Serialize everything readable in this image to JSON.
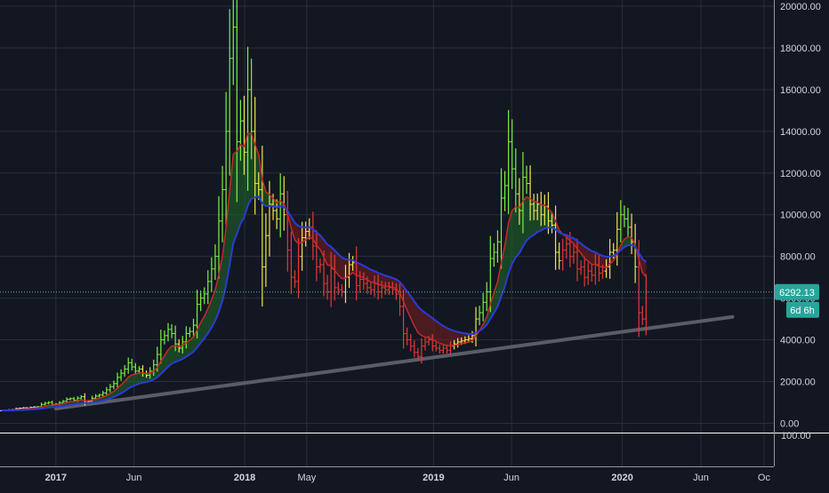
{
  "colors": {
    "background": "#131722",
    "grid": "#2a2e39",
    "axis_text": "#d1d4dc",
    "axis_line": "#9598a1",
    "up_green": "#7cf23c",
    "down_red": "#e53935",
    "neutral_yellow": "#f0e64a",
    "ma_fast_red": "#c62828",
    "ma_slow_blue": "#2a3bd6",
    "trendline": "#5a5d66",
    "price_tag_bg": "#26a69a",
    "price_line": "#4db6ac"
  },
  "chart_data": {
    "type": "ohlc",
    "y_scale": "linear",
    "ylim": [
      -450,
      20300
    ],
    "xlim": [
      "2016-09-15",
      "2020-10-20"
    ],
    "grid": true,
    "y_ticks": [
      {
        "value": 20000,
        "label": "20000.00"
      },
      {
        "value": 18000,
        "label": "18000.00"
      },
      {
        "value": 16000,
        "label": "16000.00"
      },
      {
        "value": 14000,
        "label": "14000.00"
      },
      {
        "value": 12000,
        "label": "12000.00"
      },
      {
        "value": 10000,
        "label": "10000.00"
      },
      {
        "value": 8000,
        "label": "8000.00"
      },
      {
        "value": 6000,
        "label": "6000.00"
      },
      {
        "value": 4000,
        "label": "4000.00"
      },
      {
        "value": 2000,
        "label": "2000.00"
      },
      {
        "value": 0,
        "label": "0.00"
      }
    ],
    "x_ticks": [
      {
        "date": "2017-01-01",
        "label": "2017",
        "bold": true
      },
      {
        "date": "2017-06-01",
        "label": "Jun",
        "bold": false
      },
      {
        "date": "2018-01-01",
        "label": "2018",
        "bold": true
      },
      {
        "date": "2018-05-01",
        "label": "May",
        "bold": false
      },
      {
        "date": "2019-01-01",
        "label": "2019",
        "bold": true
      },
      {
        "date": "2019-06-01",
        "label": "Jun",
        "bold": false
      },
      {
        "date": "2020-01-01",
        "label": "2020",
        "bold": true
      },
      {
        "date": "2020-06-01",
        "label": "Jun",
        "bold": false
      },
      {
        "date": "2020-10-01",
        "label": "Oc",
        "bold": false
      }
    ],
    "weekly_bars": {
      "start": "2016-09-18",
      "interval_days": 7,
      "close": [
        610,
        620,
        640,
        650,
        700,
        720,
        740,
        730,
        760,
        780,
        790,
        900,
        960,
        1000,
        900,
        920,
        990,
        1050,
        1150,
        1180,
        1100,
        1200,
        1270,
        1000,
        1050,
        1200,
        1300,
        1350,
        1450,
        1600,
        1750,
        1900,
        2200,
        2400,
        2600,
        2900,
        2700,
        2500,
        2600,
        2400,
        2300,
        2500,
        2800,
        3300,
        4000,
        4200,
        4500,
        4300,
        3800,
        3600,
        3900,
        4300,
        4400,
        4700,
        5700,
        6000,
        6200,
        6800,
        7400,
        8000,
        9700,
        11200,
        14000,
        17500,
        19000,
        13500,
        14500,
        13000,
        16000,
        14000,
        11500,
        11200,
        7500,
        9000,
        10500,
        10200,
        9800,
        11000,
        10000,
        8300,
        7000,
        6800,
        8000,
        8900,
        9200,
        9400,
        8500,
        7500,
        7600,
        6700,
        6300,
        7400,
        6500,
        6400,
        6300,
        7000,
        7600,
        7700,
        6600,
        6900,
        6700,
        6500,
        6400,
        6700,
        6300,
        6500,
        6400,
        6500,
        6400,
        6200,
        5600,
        4300,
        4000,
        3700,
        3400,
        3200,
        3700,
        3900,
        4000,
        3700,
        3600,
        3500,
        3600,
        3500,
        3700,
        3800,
        3900,
        3950,
        4000,
        4050,
        4200,
        5000,
        5300,
        5800,
        6300,
        7900,
        8200,
        8700,
        10800,
        11400,
        13500,
        12200,
        11000,
        10200,
        11800,
        11500,
        10500,
        10200,
        10500,
        10000,
        10400,
        9700,
        9500,
        8200,
        7800,
        8300,
        8600,
        8000,
        8200,
        7400,
        7500,
        7000,
        7300,
        7100,
        7600,
        7200,
        7300,
        7500,
        8200,
        8300,
        9300,
        10000,
        9800,
        9400,
        8700,
        7500,
        5300,
        5000,
        6292.13
      ]
    },
    "moving_averages": [
      {
        "name": "ma_fast_red",
        "color": "#c62828"
      },
      {
        "name": "ma_slow_blue",
        "color": "#2a3bd6"
      }
    ],
    "trendline": {
      "points": [
        [
          "2017-01-01",
          700
        ],
        [
          "2020-08-01",
          5100
        ]
      ]
    },
    "last_price": {
      "value": 6292.13,
      "label": "6292.13"
    },
    "countdown": {
      "label": "6d 6h"
    },
    "lower_pane": {
      "label": "100.00"
    }
  }
}
